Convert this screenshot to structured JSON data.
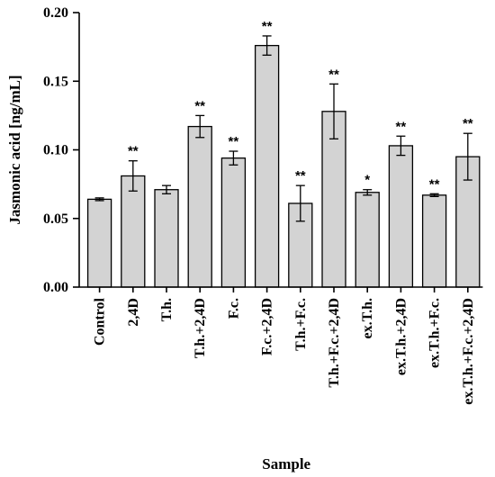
{
  "chart_data": {
    "type": "bar",
    "xlabel": "Sample",
    "ylabel": "Jasmonic acid [ng/mL]",
    "ylim": [
      0,
      0.2
    ],
    "yticks": [
      "0.00",
      "0.05",
      "0.10",
      "0.15",
      "0.20"
    ],
    "grid": false,
    "bar_color": "#d3d3d3",
    "categories": [
      "Control",
      "2,4D",
      "T.h.",
      "T.h.+2,4D",
      "F.c.",
      "F.c.+2,4D",
      "T.h.+F.c.",
      "T.h.+F.c.+2,4D",
      "ex.T.h.",
      "ex.T.h.+2,4D",
      "ex.T.h.+F.c.",
      "ex.T.h.+F.c.+2,4D"
    ],
    "values": [
      0.064,
      0.081,
      0.071,
      0.117,
      0.094,
      0.176,
      0.061,
      0.128,
      0.069,
      0.103,
      0.067,
      0.095
    ],
    "errors": [
      0.001,
      0.011,
      0.003,
      0.008,
      0.005,
      0.007,
      0.013,
      0.02,
      0.002,
      0.007,
      0.001,
      0.017
    ],
    "significance": [
      "",
      "**",
      "",
      "**",
      "**",
      "**",
      "**",
      "**",
      "*",
      "**",
      "**",
      "**"
    ]
  }
}
